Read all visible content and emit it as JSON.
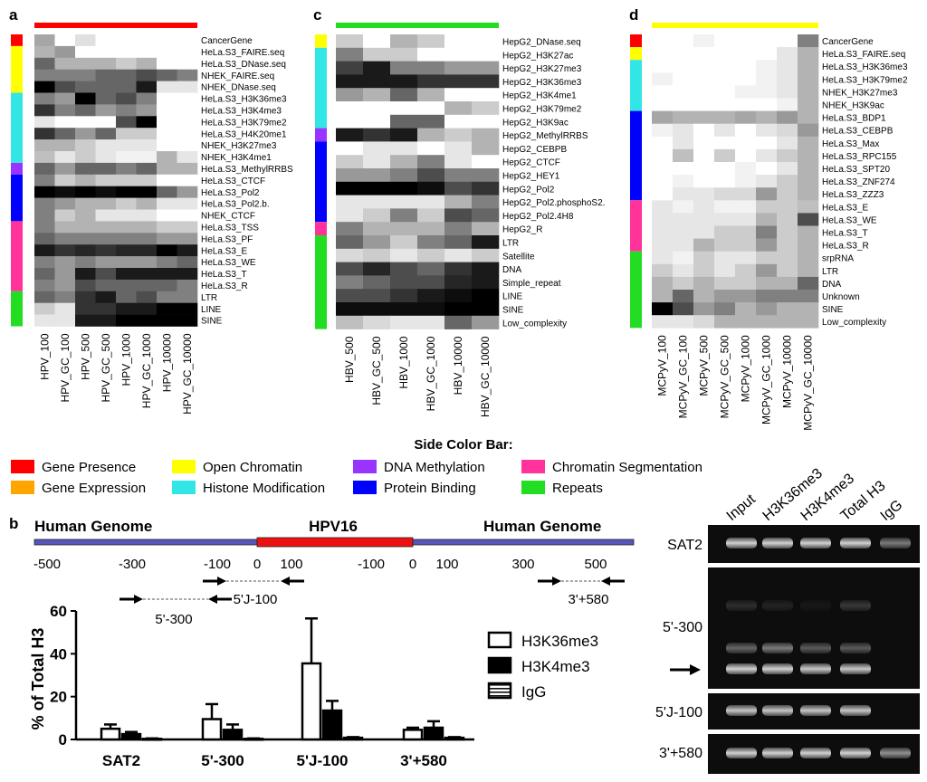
{
  "colors": {
    "gene_presence": "#ff0000",
    "gene_expression": "#ffa500",
    "open_chromatin": "#ffff00",
    "histone_modification": "#33e6e6",
    "dna_methylation": "#9933ff",
    "protein_binding": "#0000ff",
    "chromatin_segmentation": "#ff3399",
    "repeats": "#22dd22",
    "hpv_region": "#ee1111",
    "genome_line": "#5555bb"
  },
  "legend": {
    "title": "Side Color Bar:",
    "items": [
      {
        "label": "Gene Presence",
        "color_key": "gene_presence"
      },
      {
        "label": "Gene Expression",
        "color_key": "gene_expression"
      },
      {
        "label": "Open Chromatin",
        "color_key": "open_chromatin"
      },
      {
        "label": "Histone Modification",
        "color_key": "histone_modification"
      },
      {
        "label": "DNA Methylation",
        "color_key": "dna_methylation"
      },
      {
        "label": "Protein Binding",
        "color_key": "protein_binding"
      },
      {
        "label": "Chromatin Segmentation",
        "color_key": "chromatin_segmentation"
      },
      {
        "label": "Repeats",
        "color_key": "repeats"
      }
    ]
  },
  "heatmaps": [
    {
      "letter": "a",
      "top_bar_color": "gene_presence",
      "columns": [
        "HPV_100",
        "HPV_GC_100",
        "HPV_500",
        "HPV_GC_500",
        "HPV_1000",
        "HPV_GC_1000",
        "HPV_10000",
        "HPV_GC_10000"
      ],
      "rows": [
        "CancerGene",
        "HeLa.S3_FAIRE.seq",
        "HeLa.S3_DNase.seq",
        "NHEK_FAIRE.seq",
        "NHEK_DNase.seq",
        "HeLa.S3_H3K36me3",
        "HeLa.S3_H3K4me3",
        "HeLa.S3_H3K79me2",
        "HeLa.S3_H4K20me1",
        "NHEK_H3K27me3",
        "NHEK_H3K4me1",
        "HeLa.S3_MethylRRBS",
        "HeLa.S3_CTCF",
        "HeLa.S3_Pol2",
        "HeLa.S3_Pol2.b.",
        "NHEK_CTCF",
        "HeLa.S3_TSS",
        "HeLa.S3_PF",
        "HeLa.S3_E",
        "HeLa.S3_WE",
        "HeLa.S3_T",
        "HeLa.S3_R",
        "LTR",
        "LINE",
        "SINE"
      ],
      "side_segments": [
        {
          "color_key": "gene_presence",
          "rows": 1
        },
        {
          "color_key": "open_chromatin",
          "rows": 4
        },
        {
          "color_key": "histone_modification",
          "rows": 6
        },
        {
          "color_key": "dna_methylation",
          "rows": 1
        },
        {
          "color_key": "protein_binding",
          "rows": 4
        },
        {
          "color_key": "chromatin_segmentation",
          "rows": 6
        },
        {
          "color_key": "repeats",
          "rows": 3
        }
      ],
      "values": [
        [
          0.35,
          0,
          0.12,
          0,
          0,
          0,
          0,
          0
        ],
        [
          0.3,
          0.4,
          0,
          0,
          0,
          0,
          0,
          0
        ],
        [
          0.6,
          0.3,
          0.3,
          0.3,
          0.2,
          0.3,
          0,
          0
        ],
        [
          0.5,
          0.5,
          0.5,
          0.6,
          0.6,
          0.7,
          0.6,
          0.5
        ],
        [
          1,
          0.7,
          0.6,
          0.6,
          0.6,
          0.9,
          0.1,
          0.1
        ],
        [
          0.5,
          0.4,
          1,
          0.6,
          0.7,
          0.5,
          0,
          0
        ],
        [
          0.8,
          0.5,
          0.6,
          0.4,
          0.5,
          0.4,
          0,
          0
        ],
        [
          0.1,
          0,
          0,
          0,
          0.7,
          1,
          0,
          0
        ],
        [
          0.8,
          0.6,
          0.4,
          0.6,
          0.2,
          0.2,
          0,
          0
        ],
        [
          0.3,
          0.3,
          0.2,
          0.1,
          0.1,
          0.1,
          0,
          0
        ],
        [
          0.25,
          0.1,
          0.2,
          0.1,
          0.05,
          0.05,
          0.3,
          0.1
        ],
        [
          0.6,
          0.4,
          0.6,
          0.6,
          0.5,
          0.6,
          0.3,
          0.3
        ],
        [
          0.5,
          0.2,
          0.3,
          0.2,
          0.2,
          0.2,
          0,
          0
        ],
        [
          1,
          0.95,
          1,
          0.95,
          1,
          1,
          0.6,
          0.4
        ],
        [
          0.5,
          0.4,
          0.3,
          0.3,
          0.2,
          0.3,
          0.1,
          0.1
        ],
        [
          0.5,
          0.2,
          0.3,
          0.1,
          0.1,
          0.1,
          0,
          0
        ],
        [
          0.5,
          0.3,
          0.3,
          0.3,
          0.3,
          0.3,
          0.2,
          0.2
        ],
        [
          0.6,
          0.5,
          0.5,
          0.5,
          0.5,
          0.5,
          0.4,
          0.4
        ],
        [
          0.9,
          0.8,
          0.85,
          0.8,
          0.85,
          0.85,
          1,
          0.9
        ],
        [
          0.5,
          0.4,
          0.5,
          0.4,
          0.4,
          0.4,
          0.5,
          0.6
        ],
        [
          0.6,
          0.4,
          0.9,
          0.7,
          0.9,
          0.9,
          0.9,
          0.9
        ],
        [
          0.5,
          0.4,
          0.7,
          0.6,
          0.6,
          0.6,
          0.6,
          0.5
        ],
        [
          0.6,
          0.5,
          0.8,
          0.9,
          0.6,
          0.7,
          0.5,
          0.5
        ],
        [
          0.2,
          0.1,
          0.8,
          0.8,
          0.9,
          0.9,
          1,
          1
        ],
        [
          0.1,
          0.1,
          0.9,
          0.9,
          1,
          1,
          1,
          1
        ]
      ]
    },
    {
      "letter": "c",
      "top_bar_color": "repeats",
      "columns": [
        "HBV_500",
        "HBV_GC_500",
        "HBV_1000",
        "HBV_GC_1000",
        "HBV_10000",
        "HBV_GC_10000"
      ],
      "rows": [
        "HepG2_DNase.seq",
        "HepG2_H3K27ac",
        "HepG2_H3K27me3",
        "HepG2_H3K36me3",
        "HepG2_H3K4me1",
        "HepG2_H3K79me2",
        "HepG2_H3K9ac",
        "HepG2_MethylRRBS",
        "HepG2_CEBPB",
        "HepG2_CTCF",
        "HepG2_HEY1",
        "HepG2_Pol2",
        "HepG2_Pol2.phosphoS2.",
        "HepG2_Pol2.4H8",
        "HepG2_R",
        "LTR",
        "Satellite",
        "DNA",
        "Simple_repeat",
        "LINE",
        "SINE",
        "Low_complexity"
      ],
      "side_segments": [
        {
          "color_key": "open_chromatin",
          "rows": 1
        },
        {
          "color_key": "histone_modification",
          "rows": 6
        },
        {
          "color_key": "dna_methylation",
          "rows": 1
        },
        {
          "color_key": "protein_binding",
          "rows": 6
        },
        {
          "color_key": "chromatin_segmentation",
          "rows": 1
        },
        {
          "color_key": "repeats",
          "rows": 7
        }
      ],
      "values": [
        [
          0.2,
          0,
          0.3,
          0.2,
          0,
          0
        ],
        [
          0.5,
          0.2,
          0.2,
          0,
          0,
          0
        ],
        [
          0.75,
          0.9,
          0.5,
          0.5,
          0.4,
          0.4
        ],
        [
          0.9,
          0.9,
          0.9,
          0.8,
          0.8,
          0.8
        ],
        [
          0.4,
          0.3,
          0.6,
          0.3,
          0,
          0
        ],
        [
          0,
          0,
          0,
          0,
          0.3,
          0.2
        ],
        [
          0,
          0,
          0.6,
          0.6,
          0,
          0
        ],
        [
          0.9,
          0.8,
          0.9,
          0.3,
          0.2,
          0.3
        ],
        [
          0,
          0.1,
          0.1,
          0,
          0.1,
          0.3
        ],
        [
          0.2,
          0.1,
          0.3,
          0.5,
          0.1,
          0
        ],
        [
          0.4,
          0.4,
          0.5,
          0.7,
          0.5,
          0.5
        ],
        [
          1,
          1,
          1,
          0.95,
          0.7,
          0.8
        ],
        [
          0.1,
          0.1,
          0.1,
          0.1,
          0.3,
          0.5
        ],
        [
          0.1,
          0.2,
          0.5,
          0.2,
          0.7,
          0.6
        ],
        [
          0.5,
          0.3,
          0.3,
          0.3,
          0.5,
          0.3
        ],
        [
          0.6,
          0.4,
          0.2,
          0.5,
          0.6,
          0.9
        ],
        [
          0.15,
          0.2,
          0.1,
          0.2,
          0.1,
          0.2
        ],
        [
          0.7,
          0.85,
          0.7,
          0.6,
          0.8,
          0.9
        ],
        [
          0.5,
          0.6,
          0.7,
          0.7,
          0.85,
          0.9
        ],
        [
          0.7,
          0.7,
          0.8,
          0.9,
          0.95,
          1
        ],
        [
          0.95,
          0.95,
          0.95,
          0.95,
          1,
          1
        ],
        [
          0.25,
          0.15,
          0.1,
          0.1,
          0.6,
          0.4
        ]
      ]
    },
    {
      "letter": "d",
      "top_bar_color": "open_chromatin",
      "columns": [
        "MCPyV_100",
        "MCPyV_GC_100",
        "MCPyV_500",
        "MCPyV_GC_500",
        "MCPyV_1000",
        "MCPyV_GC_1000",
        "MCPyV_10000",
        "MCPyV_GC_10000"
      ],
      "rows": [
        "CancerGene",
        "HeLa.S3_FAIRE.seq",
        "HeLa.S3_H3K36me3",
        "HeLa.S3_H3K79me2",
        "NHEK_H3K27me3",
        "NHEK_H3K9ac",
        "HeLa.S3_BDP1",
        "HeLa.S3_CEBPB",
        "HeLa.S3_Max",
        "HeLa.S3_RPC155",
        "HeLa.S3_SPT20",
        "HeLa.S3_ZNF274",
        "HeLa.S3_ZZZ3",
        "HeLa.S3_E",
        "HeLa.S3_WE",
        "HeLa.S3_T",
        "HeLa.S3_R",
        "srpRNA",
        "LTR",
        "DNA",
        "Unknown",
        "SINE",
        "Low_complexity"
      ],
      "side_segments": [
        {
          "color_key": "gene_presence",
          "rows": 1
        },
        {
          "color_key": "open_chromatin",
          "rows": 1
        },
        {
          "color_key": "histone_modification",
          "rows": 4
        },
        {
          "color_key": "protein_binding",
          "rows": 7
        },
        {
          "color_key": "chromatin_segmentation",
          "rows": 4
        },
        {
          "color_key": "repeats",
          "rows": 6
        }
      ],
      "values": [
        [
          0,
          0,
          0.05,
          0,
          0,
          0,
          0,
          0.5
        ],
        [
          0,
          0,
          0,
          0,
          0,
          0,
          0.1,
          0.3
        ],
        [
          0,
          0,
          0,
          0,
          0,
          0.05,
          0.1,
          0.3
        ],
        [
          0.05,
          0,
          0,
          0,
          0,
          0.05,
          0.1,
          0.3
        ],
        [
          0,
          0,
          0,
          0,
          0.05,
          0.05,
          0.1,
          0.3
        ],
        [
          0,
          0,
          0,
          0,
          0,
          0,
          0.05,
          0.3
        ],
        [
          0.35,
          0.3,
          0.3,
          0.3,
          0.35,
          0.3,
          0.4,
          0.3
        ],
        [
          0.05,
          0.1,
          0,
          0.1,
          0,
          0.1,
          0.15,
          0.4
        ],
        [
          0,
          0.1,
          0,
          0,
          0,
          0,
          0.1,
          0.3
        ],
        [
          0,
          0.25,
          0,
          0.2,
          0,
          0.1,
          0.2,
          0.3
        ],
        [
          0,
          0,
          0,
          0,
          0.05,
          0,
          0.1,
          0.3
        ],
        [
          0,
          0.05,
          0,
          0,
          0.05,
          0.1,
          0.2,
          0.3
        ],
        [
          0,
          0.1,
          0.1,
          0.15,
          0.15,
          0.4,
          0.2,
          0.3
        ],
        [
          0.1,
          0.05,
          0.1,
          0.05,
          0.05,
          0.2,
          0.2,
          0.25
        ],
        [
          0.1,
          0.1,
          0.1,
          0.1,
          0.1,
          0.3,
          0.2,
          0.7
        ],
        [
          0.1,
          0.1,
          0.1,
          0.2,
          0.2,
          0.5,
          0.2,
          0.3
        ],
        [
          0.1,
          0.1,
          0.3,
          0.2,
          0.2,
          0.4,
          0.2,
          0.3
        ],
        [
          0.1,
          0.05,
          0.2,
          0.1,
          0.1,
          0.2,
          0.2,
          0.3
        ],
        [
          0.2,
          0.1,
          0.2,
          0.1,
          0.2,
          0.4,
          0.2,
          0.3
        ],
        [
          0.3,
          0.2,
          0.3,
          0.2,
          0.2,
          0.3,
          0.3,
          0.6
        ],
        [
          0.3,
          0.6,
          0.3,
          0.4,
          0.4,
          0.5,
          0.5,
          0.5
        ],
        [
          1,
          0.7,
          0.4,
          0.5,
          0.3,
          0.4,
          0.3,
          0.3
        ],
        [
          0.1,
          0.1,
          0.15,
          0.3,
          0.3,
          0.3,
          0.3,
          0.3
        ]
      ]
    }
  ],
  "panel_b": {
    "letter": "b",
    "genome_labels": {
      "left": "Human Genome",
      "center": "HPV16",
      "right": "Human Genome"
    },
    "coordinate_labels": [
      "-500",
      "-300",
      "-100",
      "0",
      "100",
      "-100",
      "0",
      "100",
      "300",
      "500"
    ],
    "primers": [
      {
        "label": "5'-300"
      },
      {
        "label": "5'J-100"
      },
      {
        "label": "3'+580"
      }
    ],
    "chart_data": {
      "type": "bar",
      "categories": [
        "SAT2",
        "5'-300",
        "5'J-100",
        "3'+580"
      ],
      "series": [
        {
          "name": "H3K36me3",
          "values": [
            5,
            9.5,
            35.5,
            4.5
          ],
          "errors": [
            2,
            7,
            21,
            1
          ]
        },
        {
          "name": "H3K4me3",
          "values": [
            2.5,
            4.5,
            13.5,
            5.5
          ],
          "errors": [
            1,
            2.5,
            4.5,
            3
          ]
        },
        {
          "name": "IgG",
          "values": [
            0.3,
            0.3,
            0.8,
            0.8
          ],
          "errors": [
            0.2,
            0.2,
            0.3,
            0.3
          ]
        }
      ],
      "title": "",
      "xlabel": "",
      "ylabel": "% of Total H3",
      "ylim": [
        0,
        60
      ],
      "yticks": [
        "0",
        "20",
        "40",
        "60"
      ],
      "legend_position": "right"
    }
  },
  "gel": {
    "lane_labels": [
      "Input",
      "H3K36me3",
      "H3K4me3",
      "Total H3",
      "IgG"
    ],
    "row_labels": [
      "SAT2",
      "5'-300",
      "5'J-100",
      "3'+580"
    ]
  }
}
